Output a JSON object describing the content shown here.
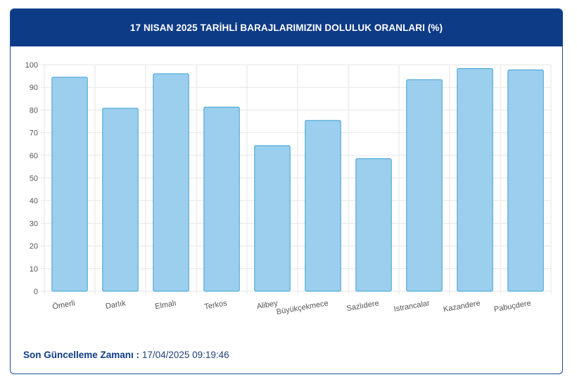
{
  "header": {
    "title": "17 NISAN 2025 TARİHLİ BARAJLARIMIZIN DOLULUK ORANLARI (%)"
  },
  "footer": {
    "label": "Son Güncelleme Zamanı :",
    "value": "17/04/2025 09:19:46"
  },
  "colors": {
    "header_bg": "#0e3b86",
    "bar_fill": "#9ccfee",
    "bar_stroke": "#3a9fd4",
    "grid": "#e6e6e6"
  },
  "chart_data": {
    "type": "bar",
    "title": "17 NISAN 2025 TARİHLİ BARAJLARIMIZIN DOLULUK ORANLARI (%)",
    "categories": [
      "Ömerli",
      "Darlık",
      "Elmalı",
      "Terkos",
      "Alibey",
      "Büyükçekmece",
      "Sazlıdere",
      "Istrancalar",
      "Kazandere",
      "Pabuçdere"
    ],
    "values": [
      94.5,
      80.8,
      96.0,
      81.3,
      64.3,
      75.4,
      58.5,
      93.4,
      98.3,
      97.7
    ],
    "ylim": [
      0,
      100
    ],
    "yticks": [
      0,
      10,
      20,
      30,
      40,
      50,
      60,
      70,
      80,
      90,
      100
    ],
    "grid": true,
    "legend": "none"
  }
}
